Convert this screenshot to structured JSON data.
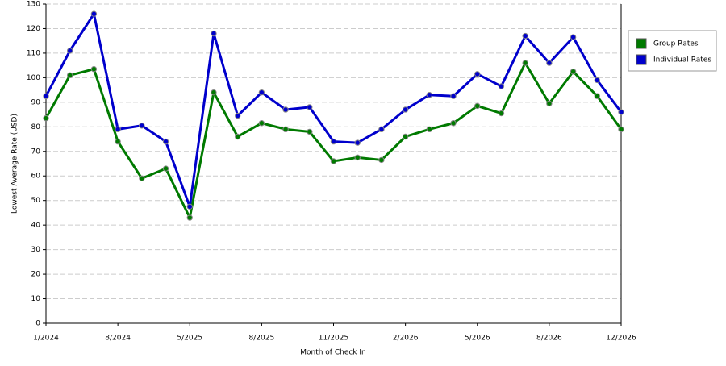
{
  "chart_data": {
    "type": "line",
    "x_label": "Month of Check In",
    "y_label": "Lowest Average Rate (USD)",
    "categories": [
      "1/2024",
      null,
      null,
      "8/2024",
      null,
      null,
      "5/2025",
      null,
      null,
      "8/2025",
      null,
      null,
      "11/2025",
      null,
      null,
      "2/2026",
      null,
      null,
      "5/2026",
      null,
      null,
      "8/2026",
      null,
      null,
      "12/2026"
    ],
    "series": [
      {
        "name": "Group Rates",
        "color": "#007a00",
        "values": [
          83.5,
          101,
          103.5,
          74,
          59,
          63,
          43,
          94,
          76,
          81.5,
          79,
          78,
          66,
          67.5,
          66.5,
          76,
          79,
          81.5,
          88.5,
          85.5,
          106,
          89.5,
          102.5,
          92.5,
          79
        ]
      },
      {
        "name": "Individual Rates",
        "color": "#0000cc",
        "values": [
          92.5,
          111,
          126,
          79,
          80.5,
          74,
          47.5,
          118,
          84.5,
          94,
          87,
          88,
          74,
          73.5,
          79,
          87,
          93,
          92.5,
          101.5,
          96.5,
          117,
          106,
          116.5,
          99,
          86
        ]
      }
    ],
    "ylim": [
      0,
      130
    ],
    "yticks": [
      0,
      10,
      20,
      30,
      40,
      50,
      60,
      70,
      80,
      90,
      100,
      110,
      120,
      130
    ],
    "grid": true,
    "legend": "right"
  }
}
